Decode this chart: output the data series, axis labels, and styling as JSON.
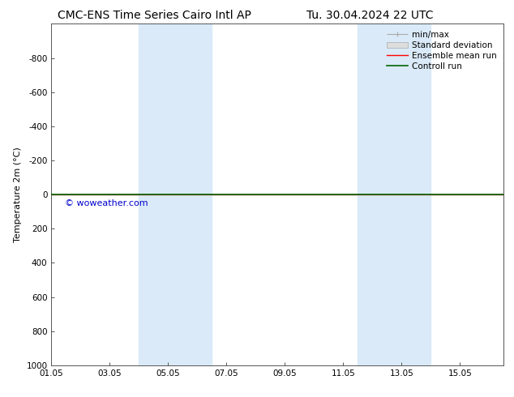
{
  "title_left": "CMC-ENS Time Series Cairo Intl AP",
  "title_right": "Tu. 30.04.2024 22 UTC",
  "ylabel": "Temperature 2m (°C)",
  "ylim_top": -1000,
  "ylim_bottom": 1000,
  "yticks": [
    -800,
    -600,
    -400,
    -200,
    0,
    200,
    400,
    600,
    800,
    1000
  ],
  "xlim": [
    0,
    15.5
  ],
  "xtick_labels": [
    "01.05",
    "03.05",
    "05.05",
    "07.05",
    "09.05",
    "11.05",
    "13.05",
    "15.05"
  ],
  "xtick_positions": [
    0,
    2,
    4,
    6,
    8,
    10,
    12,
    14
  ],
  "shaded_bands": [
    {
      "xmin": 3.0,
      "xmax": 4.0,
      "color": "#daeaf8"
    },
    {
      "xmin": 4.0,
      "xmax": 5.5,
      "color": "#daeaf8"
    },
    {
      "xmin": 10.5,
      "xmax": 12.0,
      "color": "#daeaf8"
    },
    {
      "xmin": 12.0,
      "xmax": 13.0,
      "color": "#daeaf8"
    }
  ],
  "control_run_y": 0,
  "ensemble_mean_y": 0,
  "min_max_y": 0,
  "ensemble_color": "#ff0000",
  "control_color": "#006400",
  "min_max_color": "#aaaaaa",
  "std_dev_fill_color": "#dddddd",
  "watermark": "© woweather.com",
  "watermark_color": "#0000cc",
  "background_color": "#ffffff",
  "title_fontsize": 10,
  "legend_fontsize": 7.5,
  "tick_fontsize": 7.5,
  "ylabel_fontsize": 8
}
